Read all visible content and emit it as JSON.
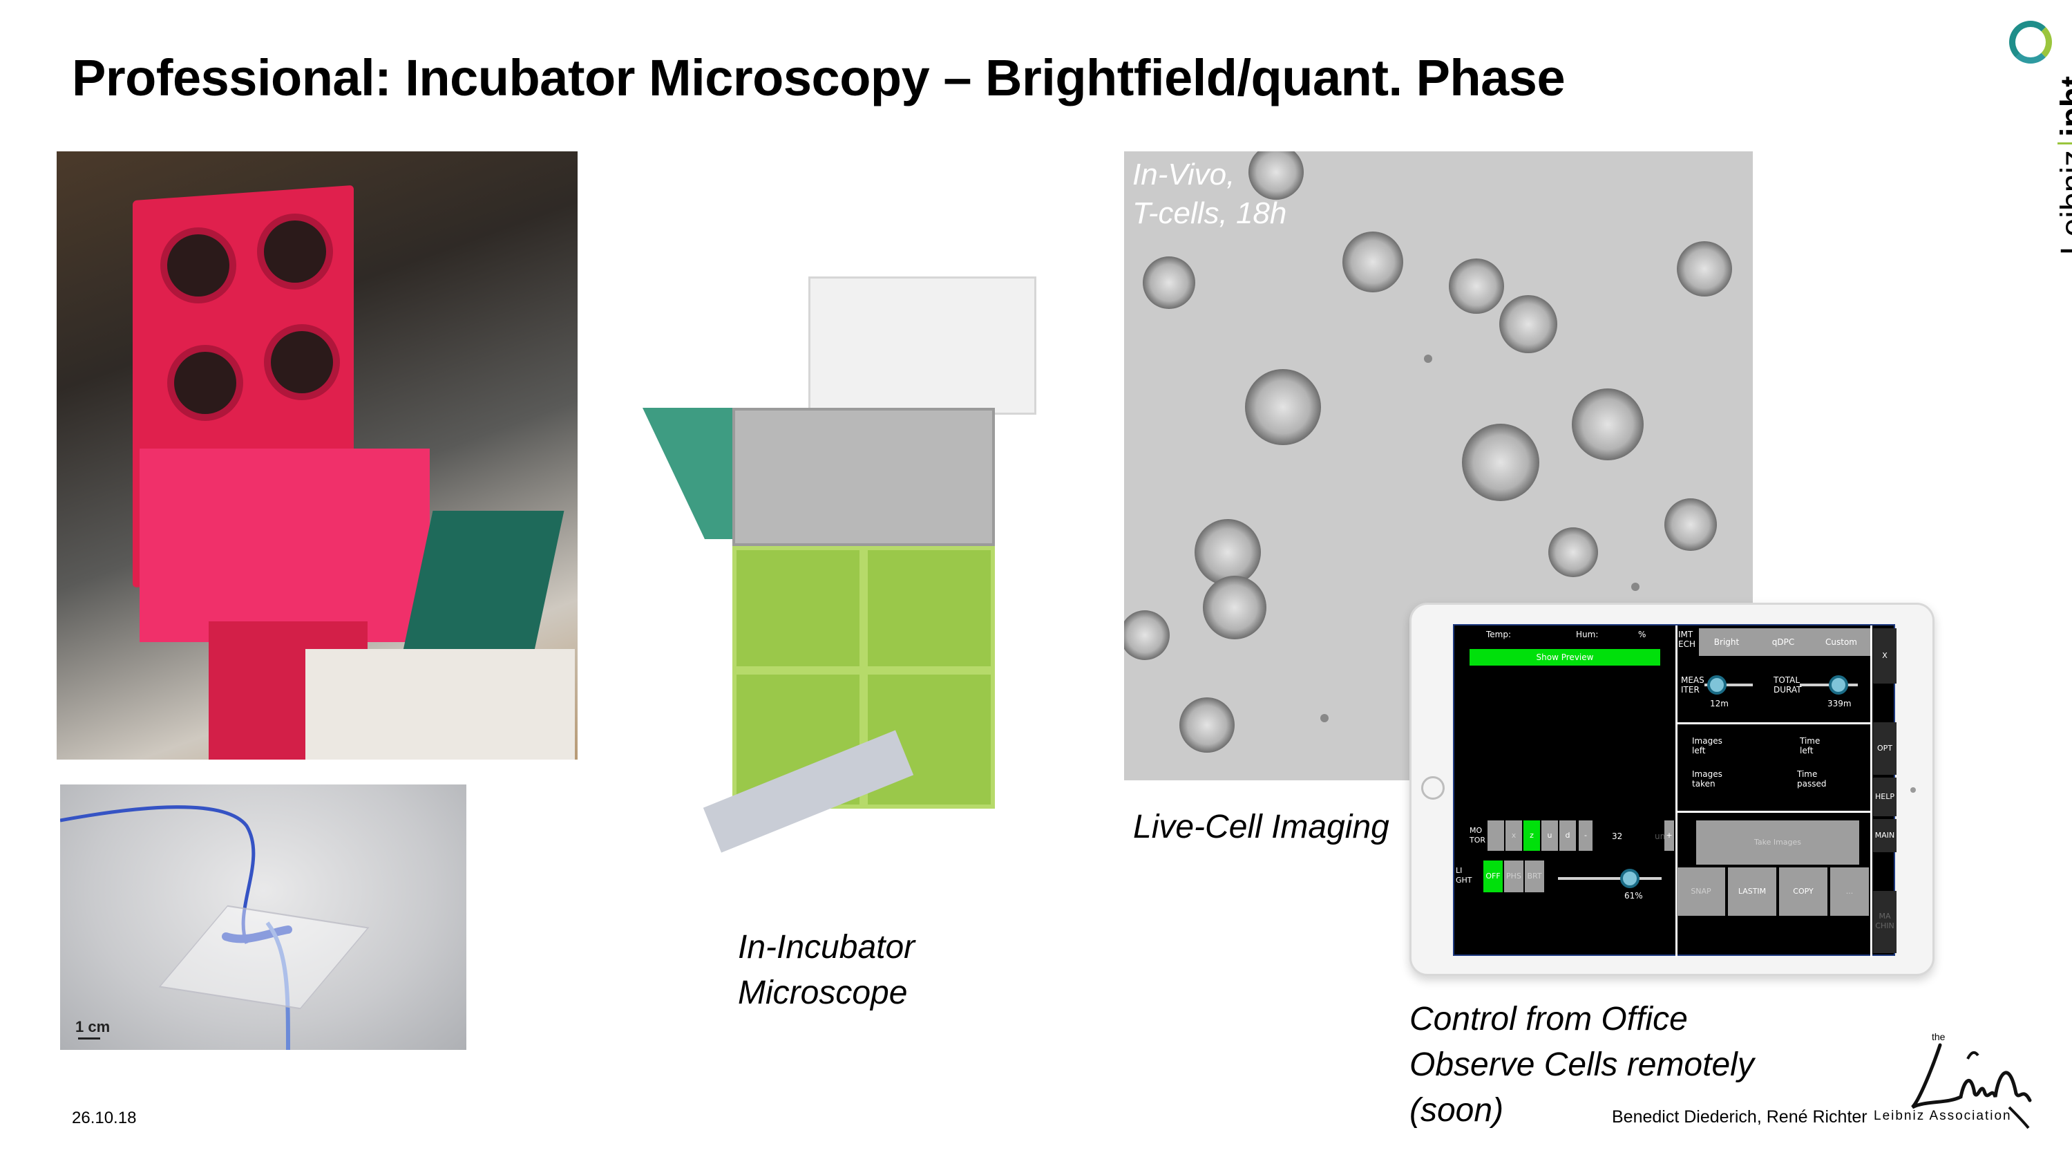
{
  "slide": {
    "title": "Professional: Incubator Microscopy – Brightfield/quant. Phase",
    "date": "26.10.18",
    "authors": "Benedict Diederich, René Richter"
  },
  "logos": {
    "top_right": {
      "text_regular": "Leibniz",
      "text_bold": "ipht",
      "accent_colors": [
        "#1f8e8a",
        "#9ac53d"
      ]
    },
    "bottom_right": {
      "prefix": "the",
      "association": "Leibniz Association"
    }
  },
  "figures": {
    "chip_scale": "1 cm",
    "cells_overlay": [
      "In-Vivo,",
      "T-cells, 18h"
    ]
  },
  "captions": {
    "microscope": [
      "In-Incubator",
      "Microscope"
    ],
    "live_cell": "Live-Cell Imaging",
    "control": [
      "Control from Office",
      "Observe Cells remotely",
      "(soon)"
    ]
  },
  "app": {
    "temp_label": "Temp:",
    "hum_label": "Hum:",
    "hum_unit": "%",
    "show_preview": "Show Preview",
    "imtech_label": [
      "IMT",
      "ECH"
    ],
    "tabs": [
      "Bright",
      "qDPC",
      "Custom"
    ],
    "close": "X",
    "meas_iter_label": [
      "MEAS",
      "ITER"
    ],
    "meas_iter_value": "12m",
    "total_durat_label": [
      "TOTAL",
      "DURAT"
    ],
    "total_durat_value": "339m",
    "images_left": [
      "Images",
      "left"
    ],
    "time_left": [
      "Time",
      "left"
    ],
    "images_taken": [
      "Images",
      "taken"
    ],
    "time_passed": [
      "Time",
      "passed"
    ],
    "side_buttons": [
      "OPT",
      "HELP",
      "MAIN",
      "MA CHIN"
    ],
    "motor_label": [
      "MO",
      "TOR"
    ],
    "motor_buttons": [
      "",
      "x",
      "z",
      "u",
      "d",
      "-"
    ],
    "motor_step_value": "32",
    "motor_step_unit": "um",
    "motor_plus": "+",
    "light_label": [
      "LI",
      "GHT"
    ],
    "light_buttons": [
      "OFF",
      "PHS",
      "BRT"
    ],
    "light_value": "61%",
    "take_images": "Take Images",
    "action_buttons": [
      "SNAP",
      "LASTIM",
      "COPY",
      "..."
    ]
  }
}
